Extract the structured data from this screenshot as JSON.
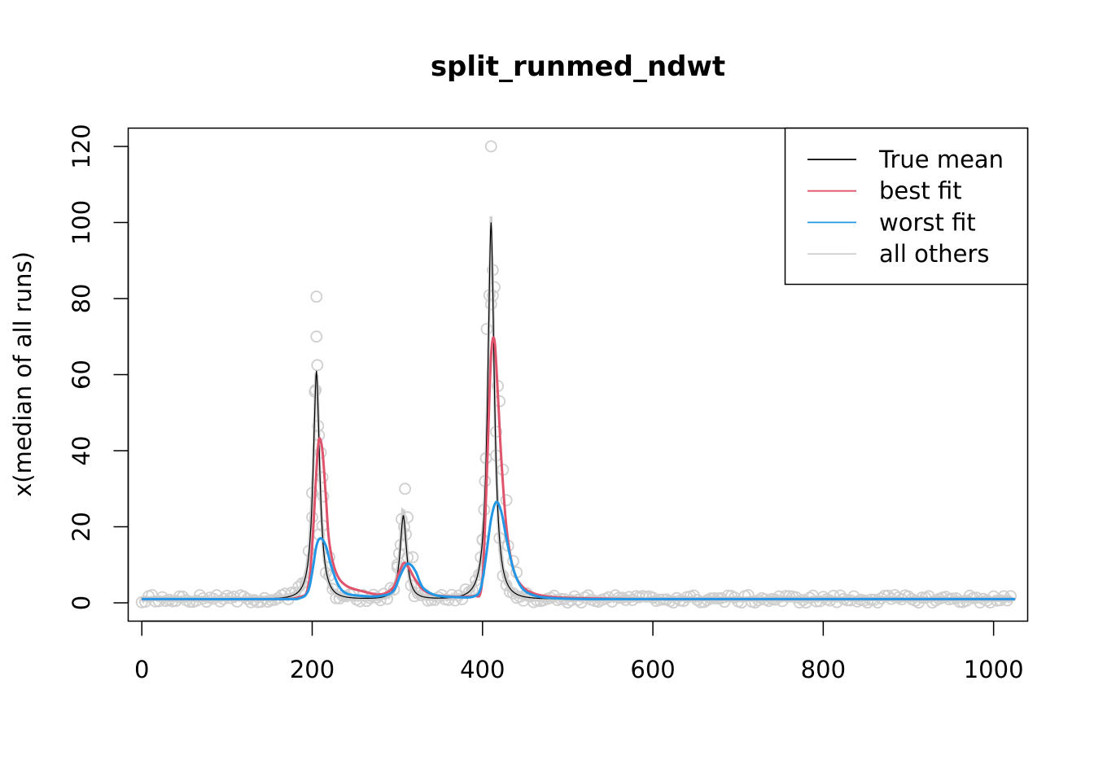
{
  "chart_data": {
    "type": "line",
    "title": "split_runmed_ndwt",
    "xlabel": "",
    "ylabel": "x(median of all runs)",
    "xlim": [
      -16,
      1040
    ],
    "ylim": [
      -4.8,
      124.8
    ],
    "xticks": [
      0,
      200,
      400,
      600,
      800,
      1000
    ],
    "yticks": [
      0,
      20,
      40,
      60,
      80,
      100,
      120
    ],
    "grid": false,
    "legend_position": "top-right",
    "colors": {
      "true_mean": "#000000",
      "best_fit": "#df536b",
      "worst_fit": "#2297e6",
      "all_others": "#cfcfcf"
    },
    "series": [
      {
        "name": "True mean",
        "color": "#000000",
        "peaks": [
          {
            "center": 205,
            "height": 60,
            "width": 3
          },
          {
            "center": 307,
            "height": 22,
            "width": 3
          },
          {
            "center": 410,
            "height": 99,
            "width": 3
          }
        ],
        "baseline": 1.0
      },
      {
        "name": "best fit",
        "color": "#df536b",
        "x": [
          0,
          150,
          185,
          195,
          200,
          205,
          208,
          212,
          216,
          220,
          228,
          240,
          260,
          280,
          295,
          302,
          308,
          314,
          320,
          330,
          345,
          370,
          390,
          398,
          402,
          406,
          410,
          414,
          418,
          422,
          428,
          436,
          446,
          460,
          480,
          520,
          600,
          800,
          1000,
          1023
        ],
        "y": [
          1,
          1,
          1.5,
          4,
          15,
          35,
          43,
          40,
          28,
          16,
          8,
          4.5,
          3,
          2.2,
          4,
          8,
          10.5,
          9,
          6.5,
          3.5,
          2,
          1.6,
          1.8,
          3,
          15,
          40,
          65,
          69,
          55,
          38,
          20,
          9,
          4.5,
          2.5,
          1.6,
          1.2,
          1,
          1,
          1,
          1
        ]
      },
      {
        "name": "worst fit",
        "color": "#2297e6",
        "x": [
          0,
          160,
          185,
          195,
          200,
          205,
          210,
          216,
          222,
          230,
          240,
          260,
          280,
          295,
          303,
          310,
          316,
          322,
          330,
          345,
          370,
          390,
          398,
          404,
          410,
          416,
          422,
          428,
          436,
          446,
          460,
          480,
          520,
          600,
          800,
          1000,
          1023
        ],
        "y": [
          1,
          1,
          1.2,
          3,
          8,
          15,
          17,
          15,
          10,
          5,
          2.5,
          1.8,
          1.8,
          3,
          7,
          10,
          10,
          8,
          4,
          2,
          1.5,
          1.7,
          4,
          12,
          22,
          26.5,
          24,
          17,
          9,
          4,
          2,
          1.3,
          1,
          1,
          1,
          1,
          1
        ]
      },
      {
        "name": "all others",
        "color": "#cfcfcf"
      }
    ],
    "scatter": {
      "color": "#cfcfcf",
      "highlights": [
        {
          "x": 205,
          "y": 80.5
        },
        {
          "x": 205,
          "y": 70
        },
        {
          "x": 206,
          "y": 62.5
        },
        {
          "x": 203,
          "y": 55.5
        },
        {
          "x": 207,
          "y": 46.5
        },
        {
          "x": 210,
          "y": 39.5
        },
        {
          "x": 212,
          "y": 33
        },
        {
          "x": 213,
          "y": 28
        },
        {
          "x": 200,
          "y": 22.5
        },
        {
          "x": 208,
          "y": 18
        },
        {
          "x": 220,
          "y": 12
        },
        {
          "x": 309,
          "y": 30
        },
        {
          "x": 305,
          "y": 22
        },
        {
          "x": 312,
          "y": 22.5
        },
        {
          "x": 310,
          "y": 18
        },
        {
          "x": 302,
          "y": 13
        },
        {
          "x": 318,
          "y": 12
        },
        {
          "x": 300,
          "y": 10
        },
        {
          "x": 410,
          "y": 120
        },
        {
          "x": 412,
          "y": 87.5
        },
        {
          "x": 414,
          "y": 83
        },
        {
          "x": 410,
          "y": 78.5
        },
        {
          "x": 405,
          "y": 72
        },
        {
          "x": 418,
          "y": 57
        },
        {
          "x": 420,
          "y": 53
        },
        {
          "x": 416,
          "y": 45
        },
        {
          "x": 404,
          "y": 38
        },
        {
          "x": 424,
          "y": 35
        },
        {
          "x": 403,
          "y": 32
        },
        {
          "x": 428,
          "y": 27
        },
        {
          "x": 402,
          "y": 24.5
        },
        {
          "x": 400,
          "y": 16.5
        },
        {
          "x": 430,
          "y": 15
        },
        {
          "x": 398,
          "y": 12
        },
        {
          "x": 436,
          "y": 11
        },
        {
          "x": 440,
          "y": 8
        }
      ]
    }
  }
}
